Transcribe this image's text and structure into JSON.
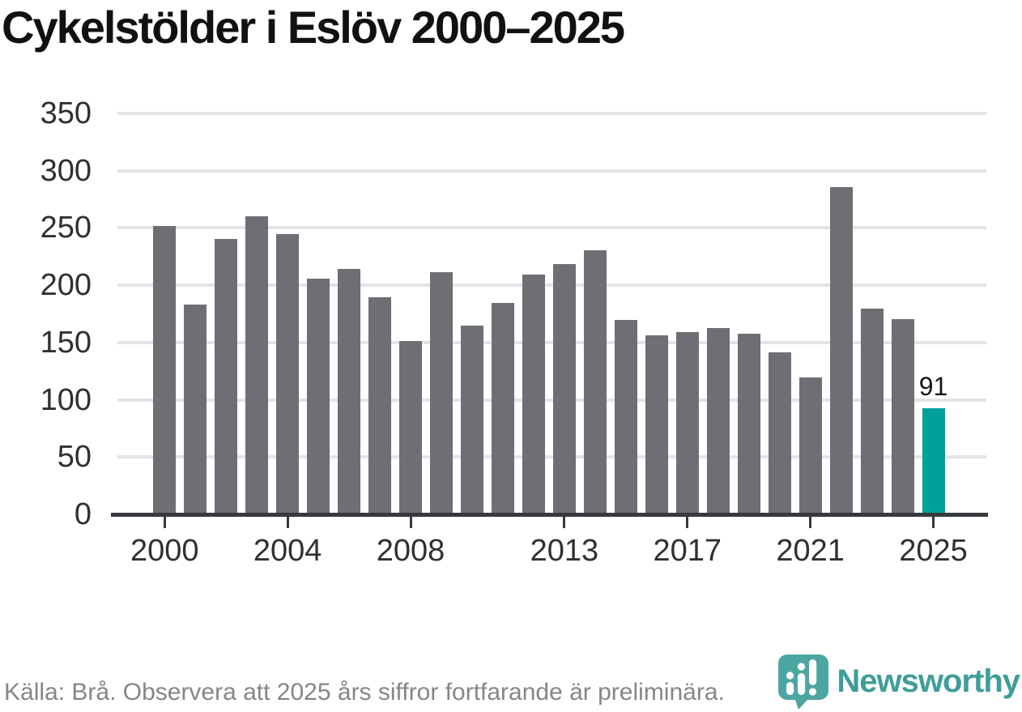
{
  "title": "Cykelstölder i Eslöv 2000–2025",
  "footer": {
    "source_note": "Källa: Brå. Observera att 2025 års siffror fortfarande är preliminära.",
    "brand_name": "Newsworthy"
  },
  "colors": {
    "bar_gray": "#6e6e74",
    "bar_highlight": "#00a09b",
    "gridline": "#e4e4e6",
    "axis": "#36393d",
    "tick_label": "#2e3033",
    "title_text": "#111111",
    "footer_text": "#84868a",
    "brand_teal": "#3f9e99",
    "logo_background": "#4ba6a1"
  },
  "chart_data": {
    "type": "bar",
    "title": "Cykelstölder i Eslöv 2000–2025",
    "categories": [
      "2000",
      "2001",
      "2002",
      "2003",
      "2004",
      "2005",
      "2006",
      "2007",
      "2008",
      "2009",
      "2010",
      "2011",
      "2012",
      "2013",
      "2014",
      "2015",
      "2016",
      "2017",
      "2018",
      "2019",
      "2020",
      "2021",
      "2022",
      "2023",
      "2024",
      "2025"
    ],
    "values": [
      250,
      182,
      239,
      259,
      243,
      204,
      213,
      188,
      150,
      210,
      163,
      183,
      208,
      217,
      229,
      168,
      155,
      158,
      161,
      156,
      140,
      118,
      284,
      178,
      169,
      91
    ],
    "highlight_index": 25,
    "highlight_label": "91",
    "xlabel": "",
    "ylabel": "",
    "ylim": [
      0,
      350
    ],
    "y_ticks": [
      0,
      50,
      100,
      150,
      200,
      250,
      300,
      350
    ],
    "x_tick_years": [
      2000,
      2004,
      2008,
      2013,
      2017,
      2021,
      2025
    ],
    "grid": "horizontal",
    "legend": "none",
    "bar_color": "#6e6e74",
    "highlight_color": "#00a09b"
  }
}
